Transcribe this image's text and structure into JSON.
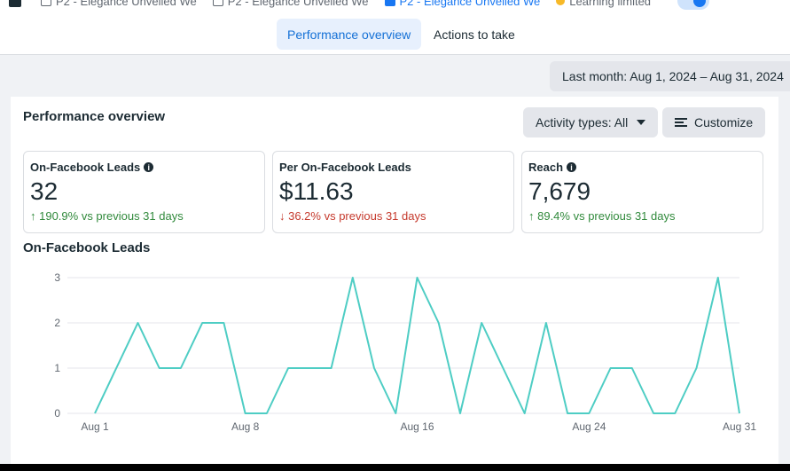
{
  "breadcrumbs": {
    "items": [
      {
        "label": "P2 - Elegance Unveiled We"
      },
      {
        "label": "P2 - Elegance Unveiled We"
      },
      {
        "label": "P2 - Elegance Unveiled We"
      }
    ],
    "status": "Learning limited"
  },
  "tabs": [
    {
      "label": "Performance overview"
    },
    {
      "label": "Actions to take"
    }
  ],
  "date_range": "Last month: Aug 1, 2024 – Aug 31, 2024",
  "card": {
    "title": "Performance overview",
    "activity_types": "Activity types: All",
    "customize": "Customize"
  },
  "metrics": [
    {
      "label": "On-Facebook Leads",
      "value": "32",
      "change": "↑ 190.9% vs previous 31 days"
    },
    {
      "label": "Per On-Facebook Leads",
      "value": "$11.63",
      "change": "↓ 36.2% vs previous 31 days"
    },
    {
      "label": "Reach",
      "value": "7,679",
      "change": "↑ 89.4% vs previous 31 days"
    }
  ],
  "colors": {
    "line": "#4ecdc4",
    "up": "#318a3c",
    "down": "#c5392c",
    "accent": "#1877f2"
  },
  "chart_data": {
    "type": "line",
    "title": "On-Facebook Leads",
    "x_tick_labels": [
      "Aug 1",
      "Aug 8",
      "Aug 16",
      "Aug 24",
      "Aug 31"
    ],
    "x_tick_days": [
      1,
      8,
      16,
      24,
      31
    ],
    "y_ticks": [
      0,
      1,
      2,
      3
    ],
    "ylim": [
      0,
      3
    ],
    "xlim": [
      1,
      31
    ],
    "grid": true,
    "series": [
      {
        "x": [
          1,
          2,
          3,
          4,
          5,
          6,
          7,
          8,
          9,
          10,
          11,
          12,
          13,
          14,
          15,
          16,
          17,
          18,
          19,
          20,
          21,
          22,
          23,
          24,
          25,
          26,
          27,
          28,
          29,
          30,
          31
        ],
        "values": [
          0,
          1,
          2,
          1,
          1,
          2,
          2,
          0,
          0,
          1,
          1,
          1,
          3,
          1,
          0,
          3,
          2,
          0,
          2,
          1,
          0,
          2,
          0,
          0,
          1,
          1,
          0,
          0,
          1,
          3,
          0
        ]
      }
    ]
  }
}
